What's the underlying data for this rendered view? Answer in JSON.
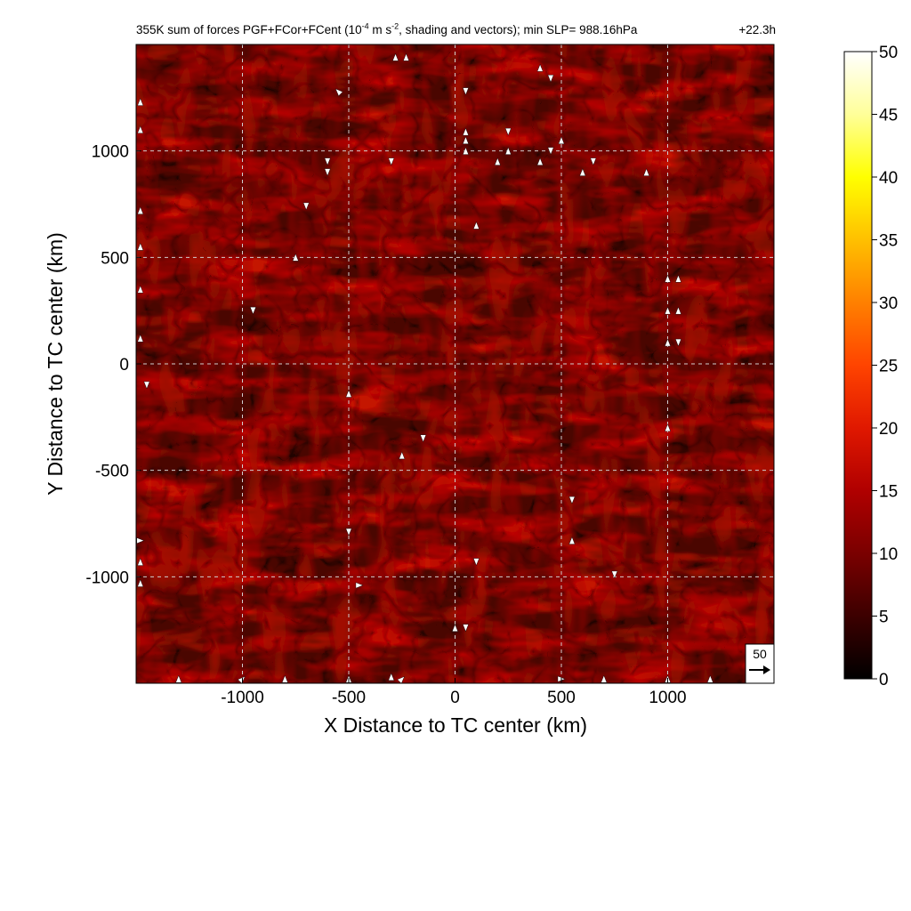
{
  "chart_data": {
    "type": "heatmap",
    "title_pre": "355K sum of forces PGF+FCor+FCent (10",
    "title_sup1": "-4",
    "title_mid": " m s",
    "title_sup2": "-2",
    "title_post": ", shading and vectors); min SLP= 988.16hPa",
    "time_label": "+22.3h",
    "xlabel": "X Distance to TC center (km)",
    "ylabel": "Y Distance to TC center (km)",
    "xlim": [
      -1500,
      1500
    ],
    "ylim": [
      -1500,
      1500
    ],
    "x_ticks": [
      -1000,
      -500,
      0,
      500,
      1000
    ],
    "y_ticks": [
      -1000,
      -500,
      0,
      500,
      1000
    ],
    "x_tick_labels": [
      "-1000",
      "-500",
      "0",
      "500",
      "1000"
    ],
    "y_tick_labels": [
      "-1000",
      "-500",
      "0",
      "500",
      "1000"
    ],
    "grid": true,
    "colorbar": {
      "min": 0,
      "max": 50,
      "ticks": [
        0,
        5,
        10,
        15,
        20,
        25,
        30,
        35,
        40,
        45,
        50
      ],
      "tick_labels": [
        "0",
        "5",
        "10",
        "15",
        "20",
        "25",
        "30",
        "35",
        "40",
        "45",
        "50"
      ],
      "colors": [
        "#000000",
        "#3c0000",
        "#7a0000",
        "#b00000",
        "#e01800",
        "#ff4400",
        "#ff8000",
        "#ffc000",
        "#ffff00",
        "#ffff99",
        "#ffffff"
      ]
    },
    "reference_vector": {
      "label": "50",
      "magnitude": 50
    },
    "field_description_values": {
      "typical_range": [
        2,
        10
      ]
    },
    "vectors": [
      [
        -280,
        1440,
        0,
        1
      ],
      [
        -230,
        1440,
        0,
        1
      ],
      [
        -550,
        1280,
        -1,
        1
      ],
      [
        50,
        1280,
        0,
        -1
      ],
      [
        400,
        1390,
        0,
        1
      ],
      [
        450,
        1340,
        0,
        -1
      ],
      [
        -600,
        950,
        0,
        -1
      ],
      [
        -600,
        900,
        0,
        -1
      ],
      [
        -300,
        950,
        0,
        -1
      ],
      [
        50,
        1090,
        0,
        1
      ],
      [
        50,
        1050,
        0,
        1
      ],
      [
        50,
        1000,
        0,
        1
      ],
      [
        250,
        1090,
        0,
        -1
      ],
      [
        250,
        1000,
        0,
        1
      ],
      [
        200,
        950,
        0,
        1
      ],
      [
        400,
        950,
        0,
        1
      ],
      [
        450,
        1000,
        0,
        -1
      ],
      [
        500,
        1050,
        0,
        1
      ],
      [
        600,
        900,
        0,
        1
      ],
      [
        650,
        950,
        0,
        -1
      ],
      [
        900,
        900,
        0,
        1
      ],
      [
        -700,
        740,
        0,
        -1
      ],
      [
        -750,
        500,
        0,
        1
      ],
      [
        100,
        650,
        0,
        1
      ],
      [
        1000,
        400,
        0,
        1
      ],
      [
        1050,
        400,
        0,
        1
      ],
      [
        1000,
        250,
        0,
        1
      ],
      [
        1050,
        250,
        0,
        1
      ],
      [
        1000,
        100,
        0,
        1
      ],
      [
        1050,
        100,
        0,
        -1
      ],
      [
        -950,
        250,
        0,
        -1
      ],
      [
        -1450,
        -100,
        0,
        -1
      ],
      [
        -500,
        -140,
        0,
        1
      ],
      [
        -150,
        -350,
        0,
        -1
      ],
      [
        -250,
        -430,
        0,
        1
      ],
      [
        550,
        -640,
        0,
        -1
      ],
      [
        550,
        -830,
        0,
        1
      ],
      [
        1000,
        -300,
        0,
        1
      ],
      [
        -500,
        -790,
        0,
        -1
      ],
      [
        100,
        -930,
        0,
        -1
      ],
      [
        -450,
        -1040,
        1,
        0
      ],
      [
        750,
        -990,
        0,
        -1
      ],
      [
        0,
        -1240,
        0,
        1
      ],
      [
        50,
        -1240,
        0,
        -1
      ],
      [
        -1480,
        1230,
        0,
        1
      ],
      [
        -1480,
        1100,
        0,
        1
      ],
      [
        -1480,
        720,
        0,
        1
      ],
      [
        -1480,
        550,
        0,
        1
      ],
      [
        -1480,
        350,
        0,
        1
      ],
      [
        -1480,
        120,
        0,
        1
      ],
      [
        -1480,
        -830,
        1,
        0
      ],
      [
        -1480,
        -930,
        0,
        1
      ],
      [
        -1480,
        -1030,
        0,
        1
      ],
      [
        -1300,
        -1480,
        0,
        1
      ],
      [
        -1000,
        -1480,
        1,
        1
      ],
      [
        -300,
        -1470,
        0,
        1
      ],
      [
        -250,
        -1480,
        1,
        1
      ],
      [
        -800,
        -1480,
        0,
        1
      ],
      [
        -500,
        -1480,
        0,
        1
      ],
      [
        1000,
        -1480,
        0,
        1
      ],
      [
        1200,
        -1480,
        0,
        1
      ],
      [
        500,
        -1480,
        1,
        0
      ],
      [
        700,
        -1480,
        0,
        1
      ]
    ]
  }
}
